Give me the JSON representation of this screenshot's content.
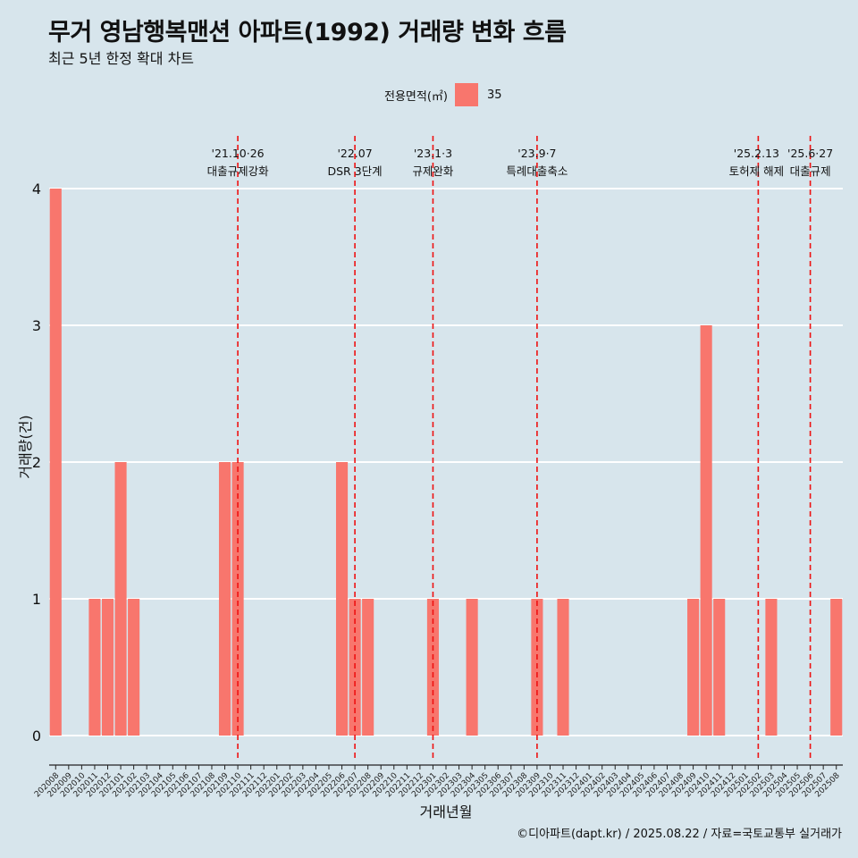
{
  "chart_data": {
    "type": "bar",
    "title": "무거 영남행복맨션 아파트(1992) 거래량 변화 흐름",
    "subtitle": "최근 5년 한정 확대 차트",
    "xlabel": "거래년월",
    "ylabel": "거래량(건)",
    "ylim": [
      0,
      4
    ],
    "yticks": [
      "0",
      "1",
      "2",
      "3",
      "4"
    ],
    "legend_title": "전용면적(㎡)",
    "legend_position": "top",
    "grid": true,
    "categories": [
      "202008",
      "202009",
      "202010",
      "202011",
      "202012",
      "202101",
      "202102",
      "202103",
      "202104",
      "202105",
      "202106",
      "202107",
      "202108",
      "202109",
      "202110",
      "202111",
      "202112",
      "202201",
      "202202",
      "202203",
      "202204",
      "202205",
      "202206",
      "202207",
      "202208",
      "202209",
      "202210",
      "202211",
      "202212",
      "202301",
      "202302",
      "202303",
      "202304",
      "202305",
      "202306",
      "202307",
      "202308",
      "202309",
      "202310",
      "202311",
      "202312",
      "202401",
      "202402",
      "202403",
      "202404",
      "202405",
      "202406",
      "202407",
      "202408",
      "202409",
      "202410",
      "202411",
      "202412",
      "202501",
      "202502",
      "202503",
      "202504",
      "202505",
      "202506",
      "202507",
      "202508"
    ],
    "series": [
      {
        "name": "35",
        "color": "#f8766d",
        "values": [
          4,
          0,
          0,
          1,
          1,
          2,
          1,
          0,
          0,
          0,
          0,
          0,
          0,
          2,
          2,
          0,
          0,
          0,
          0,
          0,
          0,
          0,
          2,
          1,
          1,
          0,
          0,
          0,
          0,
          1,
          0,
          0,
          1,
          0,
          0,
          0,
          0,
          1,
          0,
          1,
          0,
          0,
          0,
          0,
          0,
          0,
          0,
          0,
          0,
          1,
          3,
          1,
          0,
          0,
          0,
          1,
          0,
          0,
          0,
          0,
          1
        ]
      }
    ],
    "annotations": [
      {
        "x": "202110",
        "date": "'21.10·26",
        "label": "대출규제강화"
      },
      {
        "x": "202207",
        "date": "'22.07",
        "label": "DSR 3단계"
      },
      {
        "x": "202301",
        "date": "'23.1·3",
        "label": "규제완화"
      },
      {
        "x": "202309",
        "date": "'23.9·7",
        "label": "특례대출축소"
      },
      {
        "x": "202502",
        "date": "'25.2.13",
        "label": "토허제 해제"
      },
      {
        "x": "202506",
        "date": "'25.6·27",
        "label": "대출규제"
      }
    ],
    "caption": "©디아파트(dapt.kr) / 2025.08.22 / 자료=국토교통부 실거래가"
  }
}
